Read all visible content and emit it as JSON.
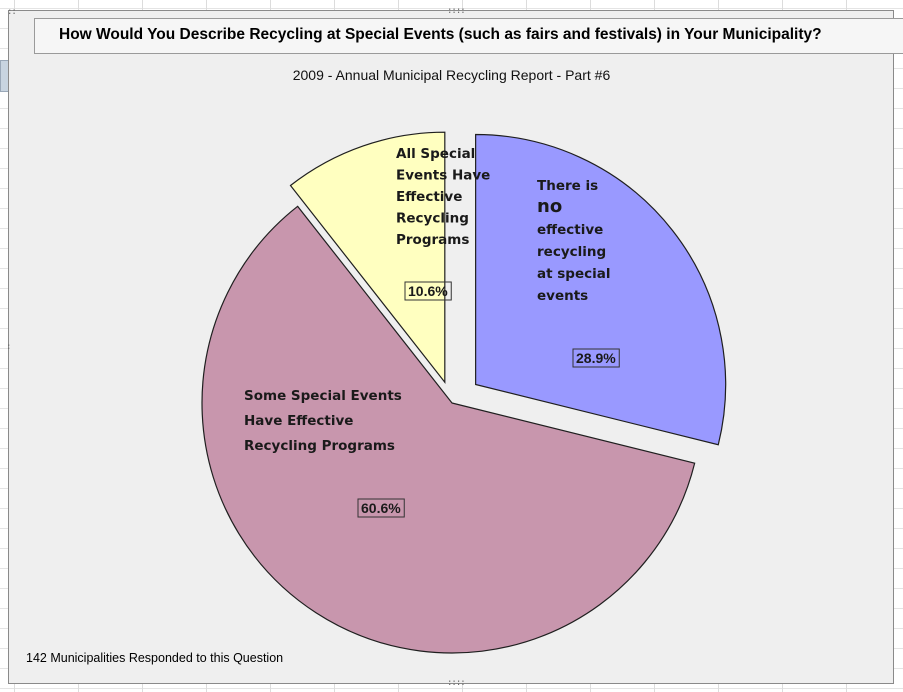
{
  "chart": {
    "title": "How Would You Describe Recycling at Special Events (such as fairs and festivals) in Your Municipality?",
    "subtitle": "2009 - Annual Municipal Recycling Report - Part #6",
    "footnote": "142 Municipalities  Responded to this Question"
  },
  "chart_data": {
    "type": "pie",
    "title": "How Would You Describe Recycling at Special Events (such as fairs and festivals) in Your Municipality?",
    "subtitle": "2009 - Annual Municipal Recycling Report - Part #6",
    "legend": "none",
    "series": [
      {
        "values": [
          10.6,
          28.9,
          60.6
        ],
        "categories": [
          "All Special Events Have Effective Recycling Programs",
          "There is no effective recycling at special events",
          "Some Special Events Have Effective Recycling Programs"
        ]
      }
    ],
    "slices": [
      {
        "id": "all",
        "label_lines": [
          "All Special",
          "Events Have",
          "Effective",
          "Recycling",
          "Programs"
        ],
        "value": 10.6,
        "pct_label": "10.6%",
        "color": "#ffffc0"
      },
      {
        "id": "none",
        "label_lines": [
          "There is",
          "no",
          "effective",
          "recycling",
          "at special",
          "events"
        ],
        "value": 28.9,
        "pct_label": "28.9%",
        "color": "#9999ff"
      },
      {
        "id": "some",
        "label_lines": [
          "Some Special Events",
          "Have Effective",
          "Recycling Programs"
        ],
        "value": 60.6,
        "pct_label": "60.6%",
        "color": "#c896ad"
      }
    ],
    "footnote": "142 Municipalities  Responded to this Question"
  }
}
